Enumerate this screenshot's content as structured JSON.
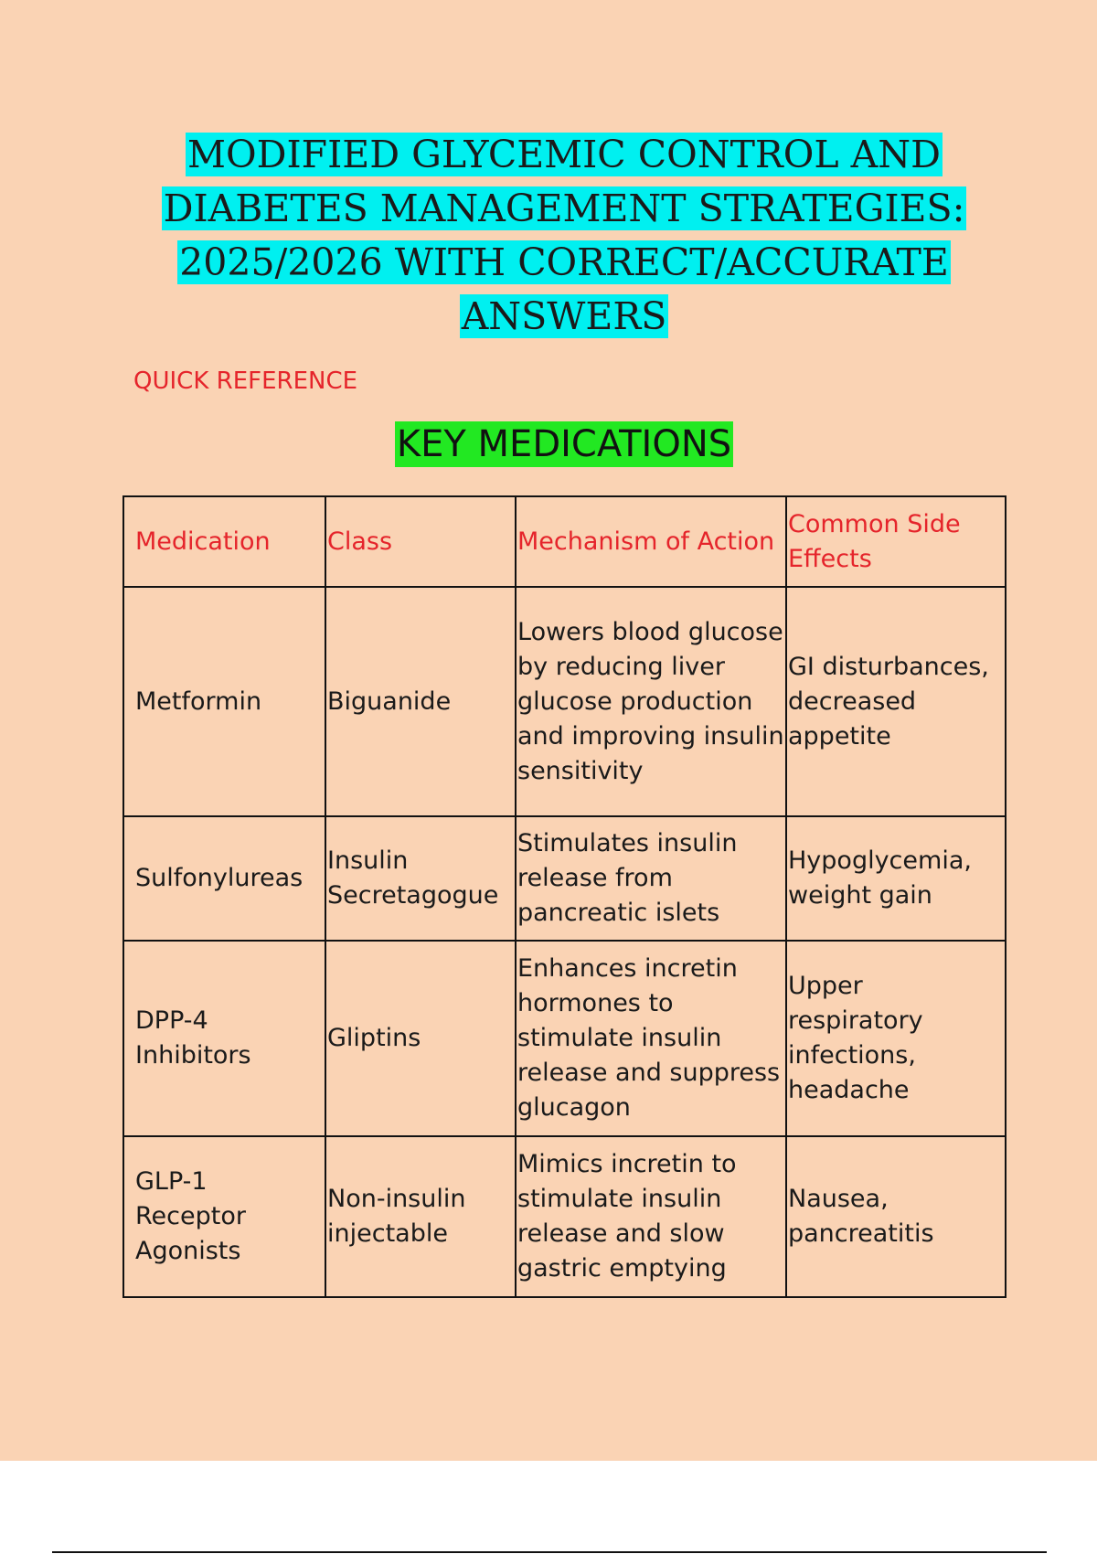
{
  "title": "MODIFIED GLYCEMIC CONTROL AND DIABETES MANAGEMENT STRATEGIES: 2025/2026 WITH CORRECT/ACCURATE ANSWERS",
  "section_label": "QUICK REFERENCE",
  "heading": "KEY MEDICATIONS",
  "colors": {
    "page_bg": "#fad3b4",
    "title_highlight": "#00f0f0",
    "heading_highlight": "#22e822",
    "accent_red": "#e5242b"
  },
  "table": {
    "headers": [
      "Medication",
      "Class",
      "Mechanism of Action",
      "Common Side Effects"
    ],
    "rows": [
      [
        "Metformin",
        "Biguanide",
        "Lowers blood glucose by reducing liver glucose production and improving insulin sensitivity",
        "GI disturbances, decreased appetite"
      ],
      [
        "Sulfonylureas",
        "Insulin Secretagogue",
        "Stimulates insulin release from pancreatic islets",
        "Hypoglycemia, weight gain"
      ],
      [
        "DPP-4 Inhibitors",
        "Gliptins",
        "Enhances incretin hormones to stimulate insulin release and suppress glucagon",
        "Upper respiratory infections, headache"
      ],
      [
        "GLP-1 Receptor Agonists",
        "Non-insulin injectable",
        "Mimics incretin to stimulate insulin release and slow gastric emptying",
        "Nausea, pancreatitis"
      ]
    ]
  }
}
